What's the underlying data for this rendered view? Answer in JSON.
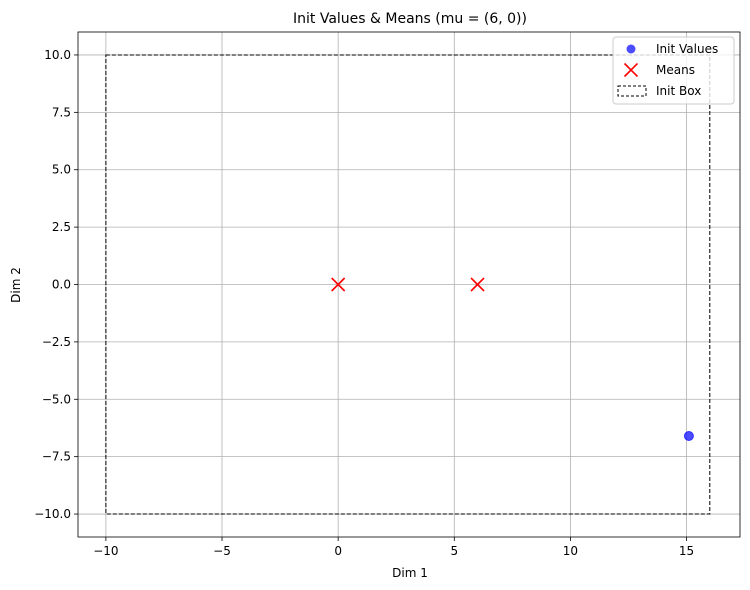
{
  "chart_data": {
    "type": "scatter",
    "title": "Init Values & Means (mu = (6, 0))",
    "xlabel": "Dim 1",
    "ylabel": "Dim 2",
    "xlim": [
      -11.2,
      17.3
    ],
    "ylim": [
      -11.0,
      11.0
    ],
    "xticks": [
      -10,
      -5,
      0,
      5,
      10,
      15
    ],
    "xtick_labels": [
      "−10",
      "−5",
      "0",
      "5",
      "10",
      "15"
    ],
    "yticks": [
      10.0,
      7.5,
      5.0,
      2.5,
      0.0,
      -2.5,
      -5.0,
      -7.5,
      -10.0
    ],
    "ytick_labels": [
      "10.0",
      "7.5",
      "5.0",
      "2.5",
      "0.0",
      "−2.5",
      "−5.0",
      "−7.5",
      "−10.0"
    ],
    "grid": true,
    "legend_position": "top-right",
    "series": [
      {
        "name": "Init Values",
        "kind": "scatter",
        "marker": "circle",
        "color": "#0000ff",
        "points": [
          {
            "x": 15.1,
            "y": -6.6
          }
        ]
      },
      {
        "name": "Means",
        "kind": "scatter",
        "marker": "x",
        "color": "#ff0000",
        "points": [
          {
            "x": 0,
            "y": 0
          },
          {
            "x": 6,
            "y": 0
          }
        ]
      },
      {
        "name": "Init Box",
        "kind": "rectangle",
        "style": "dashed",
        "color": "#000000",
        "x0": -10,
        "y0": -10,
        "x1": 16,
        "y1": 10
      }
    ]
  }
}
